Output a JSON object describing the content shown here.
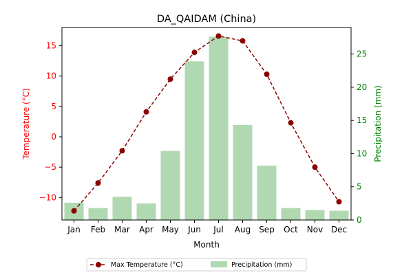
{
  "chart_data": {
    "type": "bar+line",
    "title": "DA_QAIDAM (China)",
    "xlabel": "Month",
    "ylabel_left": "Temperature (°C)",
    "ylabel_right": "Precipitation (mm)",
    "categories": [
      "Jan",
      "Feb",
      "Mar",
      "Apr",
      "May",
      "Jun",
      "Jul",
      "Aug",
      "Sep",
      "Oct",
      "Nov",
      "Dec"
    ],
    "ylim_left": [
      -13.7,
      18.0
    ],
    "ylim_right": [
      0,
      29.0
    ],
    "yticks_left": [
      -10,
      -5,
      0,
      5,
      10,
      15
    ],
    "yticks_right": [
      0,
      5,
      10,
      15,
      20,
      25
    ],
    "grid": false,
    "legend_position": "bottom-center, below plot",
    "series": [
      {
        "name": "Max Temperature (°C)",
        "kind": "line",
        "axis": "left",
        "color": "#8b0000",
        "values": [
          -12.2,
          -7.6,
          -2.3,
          4.1,
          9.5,
          13.9,
          16.6,
          15.8,
          10.3,
          2.3,
          -5.0,
          -10.7
        ]
      },
      {
        "name": "Precipitation (mm)",
        "kind": "bar",
        "axis": "right",
        "color": "#b0d9b1",
        "values": [
          2.6,
          1.8,
          3.5,
          2.5,
          10.4,
          23.9,
          27.6,
          14.3,
          8.2,
          1.8,
          1.5,
          1.4
        ]
      }
    ],
    "left_axis_color": "#ff0000",
    "right_axis_color": "#008000"
  }
}
